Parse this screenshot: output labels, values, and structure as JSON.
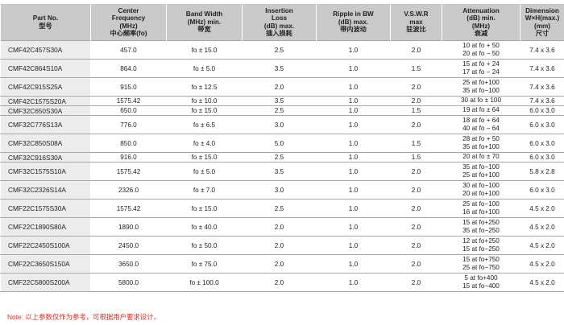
{
  "headers": [
    {
      "lines": [
        "Part No.",
        "型号"
      ]
    },
    {
      "lines": [
        "Center",
        "Frequency",
        "(MHz)",
        "中心频率(fo)"
      ]
    },
    {
      "lines": [
        "Band Width",
        "(MHz) min.",
        "带宽"
      ]
    },
    {
      "lines": [
        "Insertion",
        "Loss",
        "(dB) max.",
        "插入损耗"
      ]
    },
    {
      "lines": [
        "Ripple in BW",
        "(dB) max.",
        "带内波动"
      ]
    },
    {
      "lines": [
        "V.S.W.R",
        "max",
        "驻波比"
      ]
    },
    {
      "lines": [
        "Attenuation",
        "(dB) min.",
        "(MHz)",
        "衰减"
      ]
    },
    {
      "lines": [
        "Dimension",
        "W×H(max.)",
        "(mm)",
        "尺寸"
      ]
    }
  ],
  "rows": [
    {
      "part": "CMF42C457S30A",
      "freq": "457.0",
      "bw": "fo ± 15.0",
      "il": "2.5",
      "ripple": "1.0",
      "vswr": "2.0",
      "att": [
        "10 at fo + 50",
        "20 at fo − 50"
      ],
      "dim": "7.4 x 3.6"
    },
    {
      "part": "CMF42C864S10A",
      "freq": "864.0",
      "bw": "fo ± 5.0",
      "il": "3.5",
      "ripple": "1.0",
      "vswr": "1.5",
      "att": [
        "15 at fo + 24",
        "17 at fo − 24"
      ],
      "dim": "7.4 x 3.6"
    },
    {
      "part": "CMF42C915S25A",
      "freq": "915.0",
      "bw": "fo ± 12.5",
      "il": "2.0",
      "ripple": "1.0",
      "vswr": "2.0",
      "att": [
        "25 at fo+100",
        "35 at fo−100"
      ],
      "dim": "7.4 x 3.6"
    },
    {
      "part": "CMF42C1575S20A",
      "freq": "1575.42",
      "bw": "fo ± 10.0",
      "il": "3.5",
      "ripple": "1.0",
      "vswr": "2.0",
      "att": [
        "30 at fo ± 100"
      ],
      "dim": "7.4 x 3.6"
    },
    {
      "part": "CMF32C650S30A",
      "freq": "650.0",
      "bw": "fo ± 15.0",
      "il": "2.5",
      "ripple": "1.0",
      "vswr": "1.5",
      "att": [
        "19 at fo  ±  64"
      ],
      "dim": "6.0 x 3.0"
    },
    {
      "part": "CMF32C776S13A",
      "freq": "776.0",
      "bw": "fo ± 6.5",
      "il": "3.0",
      "ripple": "1.0",
      "vswr": "2.0",
      "att": [
        "18 at fo + 64",
        "40 at fo − 64"
      ],
      "dim": "6.0 x 3.0"
    },
    {
      "part": "CMF32C850S08A",
      "freq": "850.0",
      "bw": "fo ± 4.0",
      "il": "5.0",
      "ripple": "1.0",
      "vswr": "1.5",
      "att": [
        "28 at fo + 50",
        "35 at fo+100"
      ],
      "dim": "6.0 x 3.0"
    },
    {
      "part": "CMF32C916S30A",
      "freq": "916.0",
      "bw": "fo ± 15.0",
      "il": "2.5",
      "ripple": "1.0",
      "vswr": "1.5",
      "att": [
        "20 at fo ±  70"
      ],
      "dim": "6.0 x 3.0"
    },
    {
      "part": "CMF32C1575S10A",
      "freq": "1575.42",
      "bw": "fo ± 5.0",
      "il": "3.5",
      "ripple": "1.0",
      "vswr": "2.0",
      "att": [
        "35 at fo−100",
        "25 at fo+100"
      ],
      "dim": "5.8 x 2.8"
    },
    {
      "part": "CMF32C2326S14A",
      "freq": "2326.0",
      "bw": "fo ± 7.0",
      "il": "3.0",
      "ripple": "1.0",
      "vswr": "2.0",
      "att": [
        "30 at fo−100",
        "20 at fo+100"
      ],
      "dim": "6.0 x 3.0"
    },
    {
      "part": "CMF22C1575S30A",
      "freq": "1575.42",
      "bw": "fo ± 15.0",
      "il": "2.5",
      "ripple": "1.0",
      "vswr": "2.0",
      "att": [
        "25 at fo−100",
        "16 at fo+100"
      ],
      "dim": "4.5 x 2.0"
    },
    {
      "part": "CMF22C1890S80A",
      "freq": "1890.0",
      "bw": "fo ± 40.0",
      "il": "2.0",
      "ripple": "1.0",
      "vswr": "2.0",
      "att": [
        "15 at fo+250",
        "35 at fo−250"
      ],
      "dim": "4.5 x 2.0"
    },
    {
      "part": "CMF22C2450S100A",
      "freq": "2450.0",
      "bw": "fo ± 50.0",
      "il": "2.0",
      "ripple": "1.0",
      "vswr": "2.0",
      "att": [
        "12 at fo+250",
        "15 at fo−250"
      ],
      "dim": "4.5 x 2.0"
    },
    {
      "part": "CMF22C3650S150A",
      "freq": "3650.0",
      "bw": "fo ± 75.0",
      "il": "2.0",
      "ripple": "1.0",
      "vswr": "2.0",
      "att": [
        "15 at fo+750",
        "25 at fo−750"
      ],
      "dim": "4.5 x 2.0"
    },
    {
      "part": "CMF22C5800S200A",
      "freq": "5800.0",
      "bw": "fo ± 100.0",
      "il": "2.0",
      "ripple": "1.0",
      "vswr": "2.0",
      "att": [
        "5 at fo+400",
        "15 at fo−400"
      ],
      "dim": "4.5 x 2.0"
    }
  ],
  "note": "Note: 以上参数仅作为参考，可根据用户要求设计。",
  "colors": {
    "header_bg": "#c9c9c9",
    "part_col_bg": "#ececec",
    "note": "#e0281f"
  }
}
